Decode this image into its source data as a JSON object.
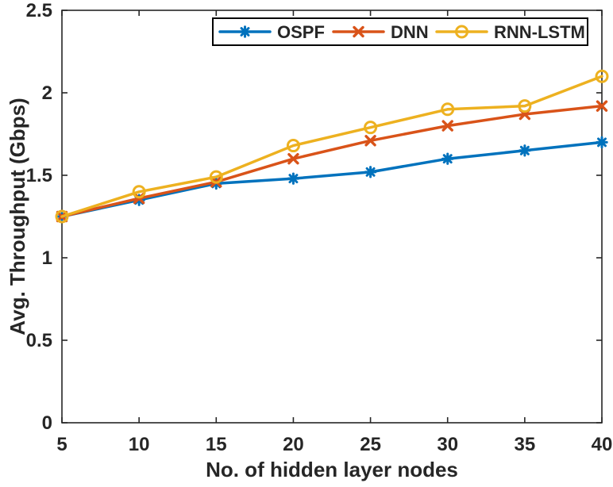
{
  "chart_data": {
    "type": "line",
    "xlabel": "No. of hidden layer nodes",
    "ylabel": "Avg. Throughput (Gbps)",
    "x": [
      5,
      10,
      15,
      20,
      25,
      30,
      35,
      40
    ],
    "xlim": [
      5,
      40
    ],
    "ylim": [
      0,
      2.5
    ],
    "xticks": [
      5,
      10,
      15,
      20,
      25,
      30,
      35,
      40
    ],
    "xtick_labels": [
      "5",
      "10",
      "15",
      "20",
      "25",
      "30",
      "35",
      "40"
    ],
    "yticks": [
      0,
      0.5,
      1,
      1.5,
      2,
      2.5
    ],
    "ytick_labels": [
      "0",
      "0.5",
      "1",
      "1.5",
      "2",
      "2.5"
    ],
    "grid": false,
    "legend_position": "top-inside",
    "background": "#FFFFFF",
    "axis_color": "#262626",
    "series": [
      {
        "name": "OSPF",
        "color": "#0072BD",
        "marker": "asterisk",
        "values": [
          1.25,
          1.35,
          1.45,
          1.48,
          1.52,
          1.6,
          1.65,
          1.7
        ]
      },
      {
        "name": "DNN",
        "color": "#D95319",
        "marker": "x",
        "values": [
          1.25,
          1.36,
          1.46,
          1.6,
          1.71,
          1.8,
          1.87,
          1.92
        ]
      },
      {
        "name": "RNN-LSTM",
        "color": "#EDB120",
        "marker": "circle",
        "values": [
          1.25,
          1.4,
          1.49,
          1.68,
          1.79,
          1.9,
          1.92,
          2.1
        ]
      }
    ]
  }
}
